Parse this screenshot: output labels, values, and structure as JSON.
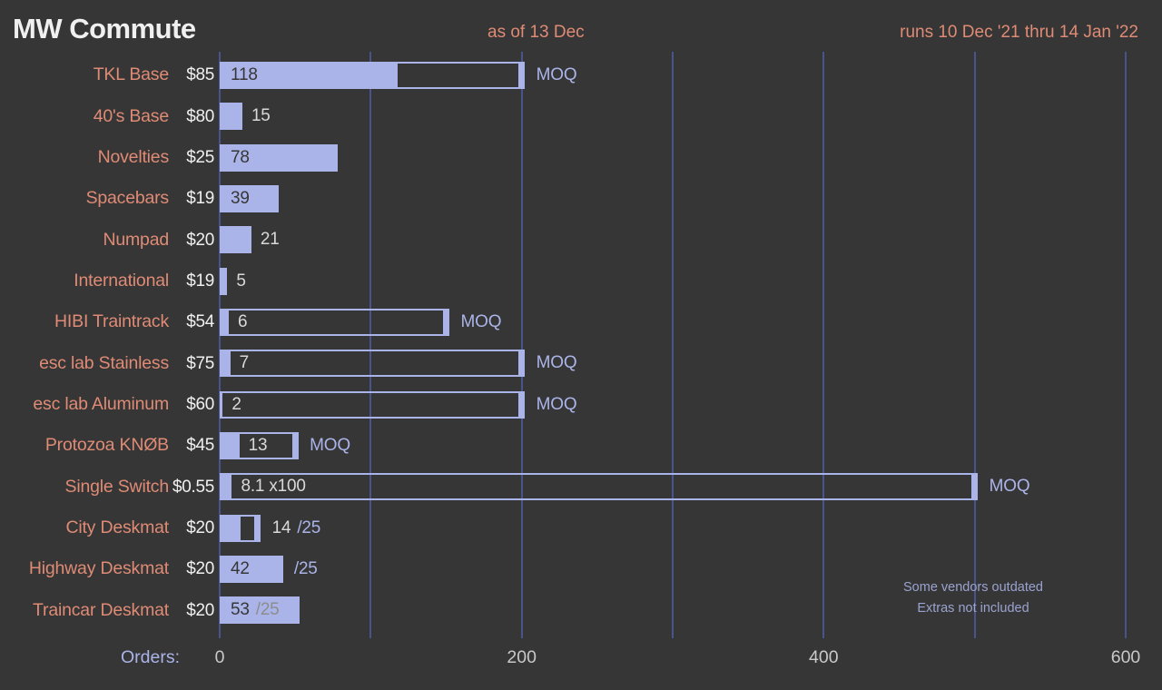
{
  "header": {
    "title": "MW Commute",
    "as_of": "as of 13 Dec",
    "runs": "runs 10 Dec '21 thru 14 Jan '22"
  },
  "axis": {
    "orders_label": "Orders:"
  },
  "notes": [
    "Some vendors outdated",
    "Extras not included"
  ],
  "colors": {
    "background": "#363636",
    "bar": "#abb4e8",
    "accent": "#abb4e8",
    "label": "#df8b75",
    "grid": "#49538c",
    "dark-text": "#373737",
    "light-text": "#d9d9d9",
    "muted-text": "#8d8d8d",
    "white-text": "#f0f0f0",
    "tick-text": "#c9c9c9",
    "note-text": "#9aa3cf"
  },
  "chart_data": {
    "type": "bar",
    "orientation": "horizontal",
    "title": "MW Commute",
    "xlabel": "Orders",
    "xlim": [
      0,
      600
    ],
    "x_ticks": [
      0,
      200,
      400,
      600
    ],
    "grid_step": 100,
    "grid": true,
    "rows": [
      {
        "label": "TKL Base",
        "price": "$85",
        "value": 118,
        "moq": 200,
        "target": null,
        "segments": [
          {
            "role": "value",
            "text": "118",
            "style": "dark",
            "pos": "fill-start"
          },
          {
            "role": "moq",
            "text": "MOQ",
            "style": "accent",
            "pos": "after-end"
          }
        ]
      },
      {
        "label": "40's Base",
        "price": "$80",
        "value": 15,
        "moq": null,
        "target": null,
        "segments": [
          {
            "role": "value",
            "text": "15",
            "style": "light",
            "pos": "after-fill"
          }
        ]
      },
      {
        "label": "Novelties",
        "price": "$25",
        "value": 78,
        "moq": null,
        "target": null,
        "segments": [
          {
            "role": "value",
            "text": "78",
            "style": "dark",
            "pos": "fill-start"
          }
        ]
      },
      {
        "label": "Spacebars",
        "price": "$19",
        "value": 39,
        "moq": null,
        "target": null,
        "segments": [
          {
            "role": "value",
            "text": "39",
            "style": "dark",
            "pos": "fill-start"
          }
        ]
      },
      {
        "label": "Numpad",
        "price": "$20",
        "value": 21,
        "moq": null,
        "target": null,
        "segments": [
          {
            "role": "value",
            "text": "21",
            "style": "light",
            "pos": "after-fill"
          }
        ]
      },
      {
        "label": "International",
        "price": "$19",
        "value": 5,
        "moq": null,
        "target": null,
        "segments": [
          {
            "role": "value",
            "text": "5",
            "style": "light",
            "pos": "after-fill"
          }
        ]
      },
      {
        "label": "HIBI Traintrack",
        "price": "$54",
        "value": 6,
        "moq": 150,
        "target": null,
        "segments": [
          {
            "role": "value",
            "text": "6",
            "style": "light",
            "pos": "after-fill"
          },
          {
            "role": "moq",
            "text": "MOQ",
            "style": "accent",
            "pos": "after-end"
          }
        ]
      },
      {
        "label": "esc lab Stainless",
        "price": "$75",
        "value": 7,
        "moq": 200,
        "target": null,
        "segments": [
          {
            "role": "value",
            "text": "7",
            "style": "light",
            "pos": "after-fill"
          },
          {
            "role": "moq",
            "text": "MOQ",
            "style": "accent",
            "pos": "after-end"
          }
        ]
      },
      {
        "label": "esc lab Aluminum",
        "price": "$60",
        "value": 2,
        "moq": 200,
        "target": null,
        "segments": [
          {
            "role": "value",
            "text": "2",
            "style": "light",
            "pos": "after-fill"
          },
          {
            "role": "moq",
            "text": "MOQ",
            "style": "accent",
            "pos": "after-end"
          }
        ]
      },
      {
        "label": "Protozoa KNØB",
        "price": "$45",
        "value": 13,
        "moq": 50,
        "target": null,
        "segments": [
          {
            "role": "value",
            "text": "13",
            "style": "light",
            "pos": "after-fill"
          },
          {
            "role": "moq",
            "text": "MOQ",
            "style": "accent",
            "pos": "after-end"
          }
        ]
      },
      {
        "label": "Single Switch",
        "price": "$0.55",
        "value": 8.1,
        "scale_note": "x100",
        "moq": 500,
        "target": null,
        "segments": [
          {
            "role": "value",
            "text": "8.1 x100",
            "style": "light",
            "pos": "after-fill"
          },
          {
            "role": "moq",
            "text": "MOQ",
            "style": "accent",
            "pos": "after-end"
          }
        ]
      },
      {
        "label": "City Deskmat",
        "price": "$20",
        "value": 14,
        "moq": null,
        "target": 25,
        "segments": [
          {
            "role": "value",
            "text": "14",
            "style": "light",
            "pos": "after-end"
          },
          {
            "role": "target",
            "text": "/25",
            "style": "accent",
            "pos": "after-end"
          }
        ]
      },
      {
        "label": "Highway Deskmat",
        "price": "$20",
        "value": 42,
        "moq": null,
        "target": 25,
        "segments": [
          {
            "role": "value",
            "text": "42",
            "style": "dark",
            "pos": "fill-start"
          },
          {
            "role": "target",
            "text": "/25",
            "style": "accent",
            "pos": "after-end"
          }
        ]
      },
      {
        "label": "Traincar Deskmat",
        "price": "$20",
        "value": 53,
        "moq": null,
        "target": 25,
        "segments": [
          {
            "role": "value",
            "text": "53",
            "style": "dark",
            "pos": "fill-start"
          },
          {
            "role": "target",
            "text": "/25",
            "style": "muted",
            "pos": "fill-start"
          }
        ]
      }
    ]
  }
}
